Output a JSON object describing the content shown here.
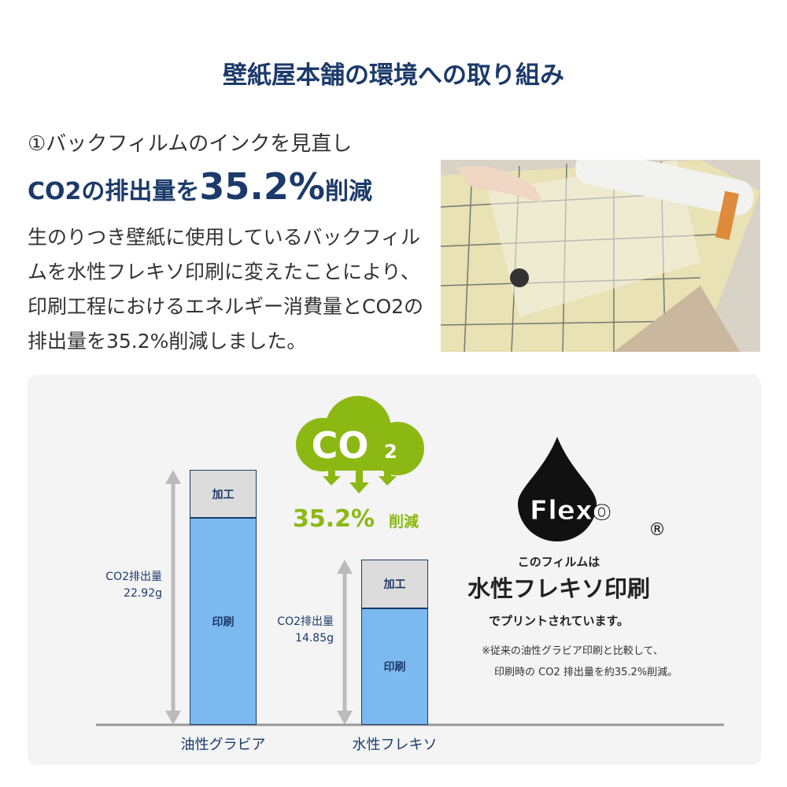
{
  "title": "壁紙屋本舗の環境への取り組み",
  "section": {
    "heading": "①バックフィルムのインクを見直し",
    "headline_pre": "CO2の排出量を",
    "headline_num": "35.2%",
    "headline_post": "削減",
    "body": "生のりつき壁紙に使用しているバックフィルムを水性フレキソ印刷に変えたことにより､印刷工程におけるエネルギー消費量とCO2の排出量を35.2%削減しました。"
  },
  "badge": {
    "cloud_text": "CO",
    "cloud_sub": "2",
    "reduction": "35.2%",
    "reduction_suffix": "削減",
    "color": "#8cb814"
  },
  "flexo": {
    "logo": "Flexo",
    "registered": "®",
    "line1": "このフィルムは",
    "line2": "水性フレキソ印刷",
    "line3": "でプリントされています。",
    "note1": "※従来の油性グラビア印刷と比較して、",
    "note2": "印刷時の CO2 排出量を約35.2%削減。"
  },
  "chart_data": {
    "type": "bar",
    "stacked": true,
    "categories": [
      "油性グラビア",
      "水性フレキソ"
    ],
    "series": [
      {
        "name": "印刷",
        "values": [
          18.6,
          10.5
        ],
        "color": "#7cb9f0"
      },
      {
        "name": "加工",
        "values": [
          4.3,
          4.3
        ],
        "color": "#dcdcdc"
      }
    ],
    "totals": [
      22.92,
      14.85
    ],
    "total_labels": [
      [
        "CO2排出量",
        "22.92g"
      ],
      [
        "CO2排出量",
        "14.85g"
      ]
    ],
    "ylim": [
      0,
      22.92
    ],
    "grid": false
  }
}
